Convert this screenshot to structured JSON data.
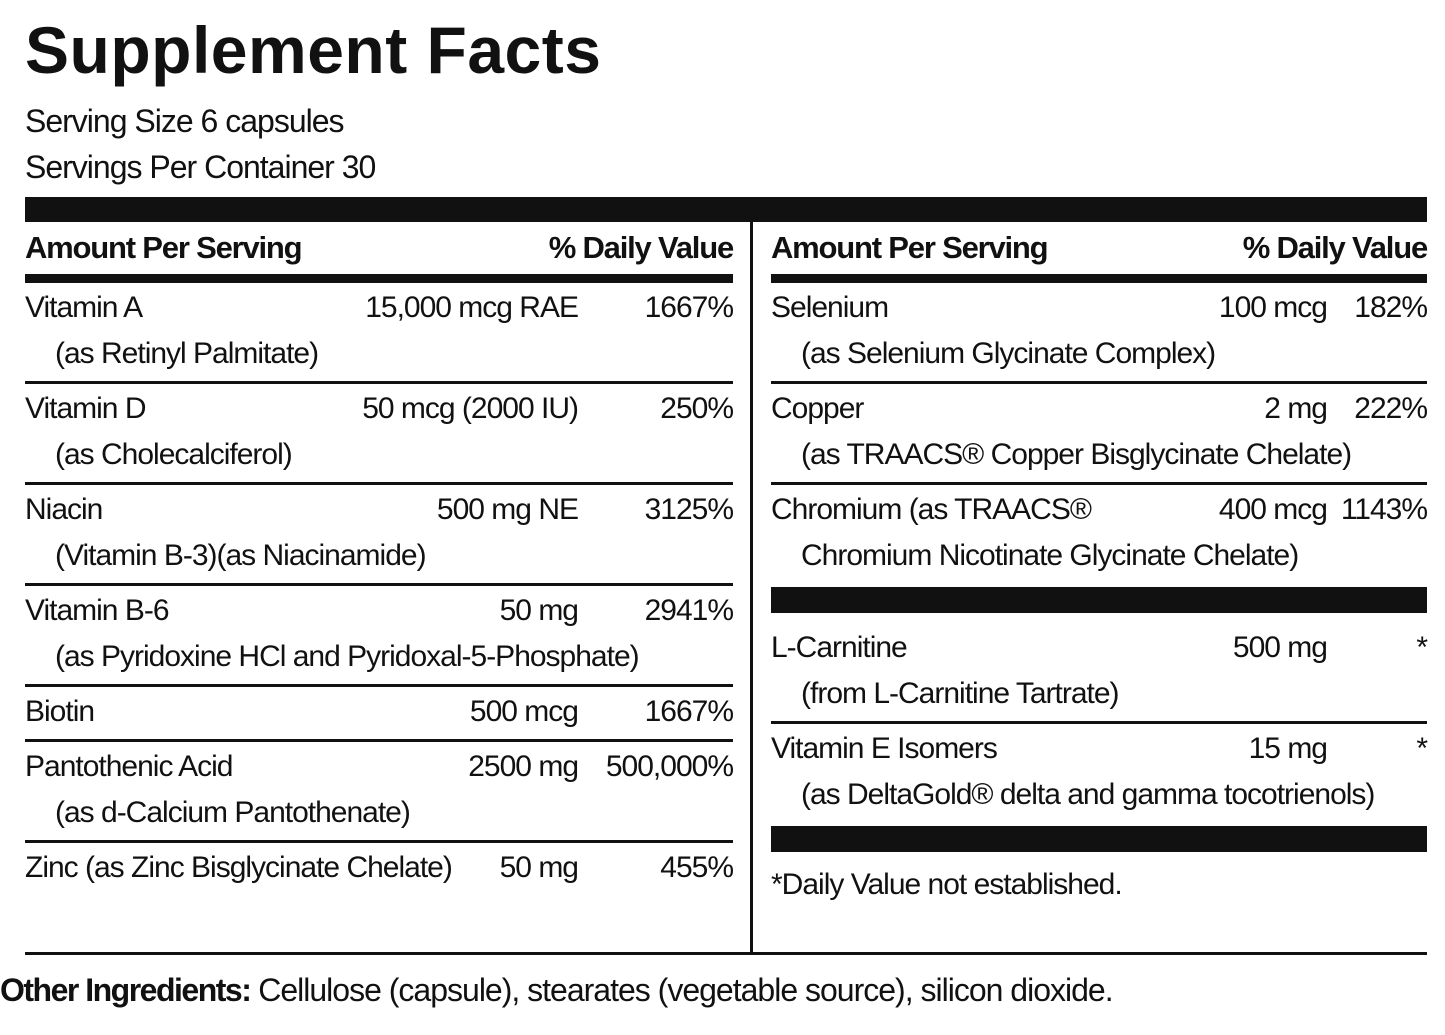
{
  "title": "Supplement Facts",
  "serving_size": "Serving Size 6 capsules",
  "servings_per_container": "Servings Per Container 30",
  "left": {
    "header": {
      "amount": "Amount Per Serving",
      "dv": "% Daily Value"
    },
    "rows": [
      {
        "name": "Vitamin A",
        "amount": "15,000 mcg RAE",
        "dv": "1667%",
        "source": "(as Retinyl Palmitate)"
      },
      {
        "name": "Vitamin D",
        "amount": "50 mcg (2000 IU)",
        "dv": "250%",
        "source": "(as Cholecalciferol)"
      },
      {
        "name": "Niacin",
        "amount": "500 mg NE",
        "dv": "3125%",
        "source": "(Vitamin B-3)(as Niacinamide)"
      },
      {
        "name": "Vitamin B-6",
        "amount": "50 mg",
        "dv": "2941%",
        "source": "(as Pyridoxine HCl and Pyridoxal-5-Phosphate)"
      },
      {
        "name": "Biotin",
        "amount": "500 mcg",
        "dv": "1667%"
      },
      {
        "name": "Pantothenic Acid",
        "amount": "2500 mg",
        "dv": "500,000%",
        "source": "(as d-Calcium Pantothenate)"
      },
      {
        "name": "Zinc (as Zinc Bisglycinate Chelate)",
        "amount": "50 mg",
        "dv": "455%"
      }
    ]
  },
  "right": {
    "header": {
      "amount": "Amount Per Serving",
      "dv": "% Daily Value"
    },
    "groups": [
      [
        {
          "name": "Selenium",
          "amount": "100 mcg",
          "dv": "182%",
          "source": "(as Selenium Glycinate Complex)"
        },
        {
          "name": "Copper",
          "amount": "2 mg",
          "dv": "222%",
          "source": "(as TRAACS® Copper Bisglycinate Chelate)"
        },
        {
          "name": "Chromium (as TRAACS®",
          "amount": "400 mcg",
          "dv": "1143%",
          "source": "Chromium Nicotinate Glycinate Chelate)"
        }
      ],
      [
        {
          "name": "L-Carnitine",
          "amount": "500 mg",
          "dv": "*",
          "source": "(from L-Carnitine Tartrate)"
        },
        {
          "name": "Vitamin E Isomers",
          "amount": "15 mg",
          "dv": "*",
          "source": "(as DeltaGold® delta and gamma tocotrienols)"
        }
      ]
    ],
    "footnote": "*Daily Value not established."
  },
  "other_ingredients": {
    "label": "Other Ingredients:",
    "text": " Cellulose (capsule), stearates (vegetable source), silicon dioxide."
  }
}
